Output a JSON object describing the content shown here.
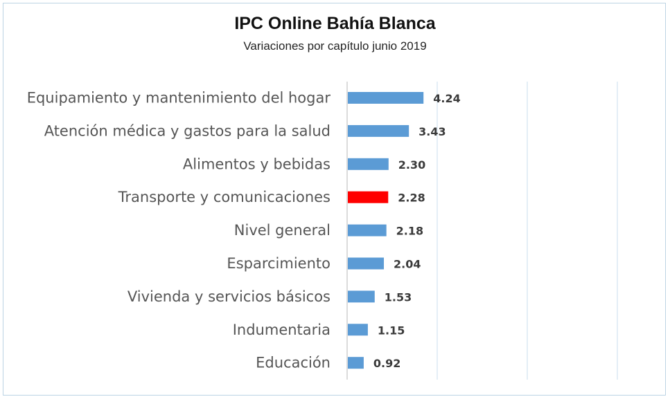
{
  "chart_data": {
    "type": "bar",
    "orientation": "horizontal",
    "title": "IPC Online Bahía Blanca",
    "subtitle": "Variaciones por capítulo junio 2019",
    "categories": [
      "Equipamiento y mantenimiento del hogar",
      "Atención médica y gastos para la salud",
      "Alimentos y bebidas",
      "Transporte y comunicaciones",
      "Nivel general",
      "Esparcimiento",
      "Vivienda y servicios básicos",
      "Indumentaria",
      "Educación"
    ],
    "values": [
      4.24,
      3.43,
      2.3,
      2.28,
      2.18,
      2.04,
      1.53,
      1.15,
      0.92
    ],
    "value_labels": [
      "4.24",
      "3.43",
      "2.30",
      "2.28",
      "2.18",
      "2.04",
      "1.53",
      "1.15",
      "0.92"
    ],
    "xlim": [
      0,
      15
    ],
    "x_gridlines": [
      0,
      5,
      10,
      15
    ],
    "grid": true,
    "legend": "none",
    "colors": {
      "default": "#5b9bd5",
      "highlight": "#ff0000",
      "gridline": "#c9dced"
    },
    "highlight_index": 3
  }
}
